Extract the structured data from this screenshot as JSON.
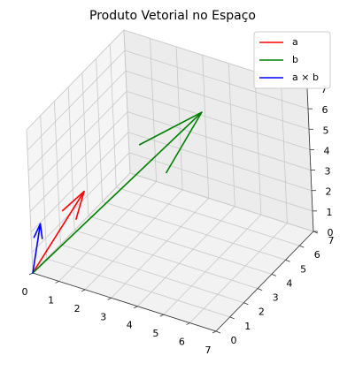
{
  "chart_data": {
    "type": "quiver3d",
    "title": "Produto Vetorial no Espaço",
    "xlabel": "",
    "ylabel": "",
    "zlabel": "",
    "xlim": [
      0,
      7
    ],
    "ylim": [
      0,
      7
    ],
    "zlim": [
      0,
      7
    ],
    "xticks": [
      "0",
      "1",
      "2",
      "3",
      "4",
      "5",
      "6",
      "7"
    ],
    "yticks": [
      "0",
      "1",
      "2",
      "3",
      "4",
      "5",
      "6",
      "7"
    ],
    "zticks": [
      "0",
      "1",
      "2",
      "3",
      "4",
      "5",
      "6",
      "7"
    ],
    "grid": true,
    "legend_position": "top-right",
    "origin": [
      0,
      0,
      0
    ],
    "series": [
      {
        "name": "a",
        "vector": [
          1,
          2,
          3
        ],
        "color": "#ff0000"
      },
      {
        "name": "b",
        "vector": [
          4,
          5,
          6
        ],
        "color": "#008000"
      },
      {
        "name": "a × b",
        "vector": [
          -3,
          6,
          -3
        ],
        "color": "#0000ff"
      }
    ]
  }
}
